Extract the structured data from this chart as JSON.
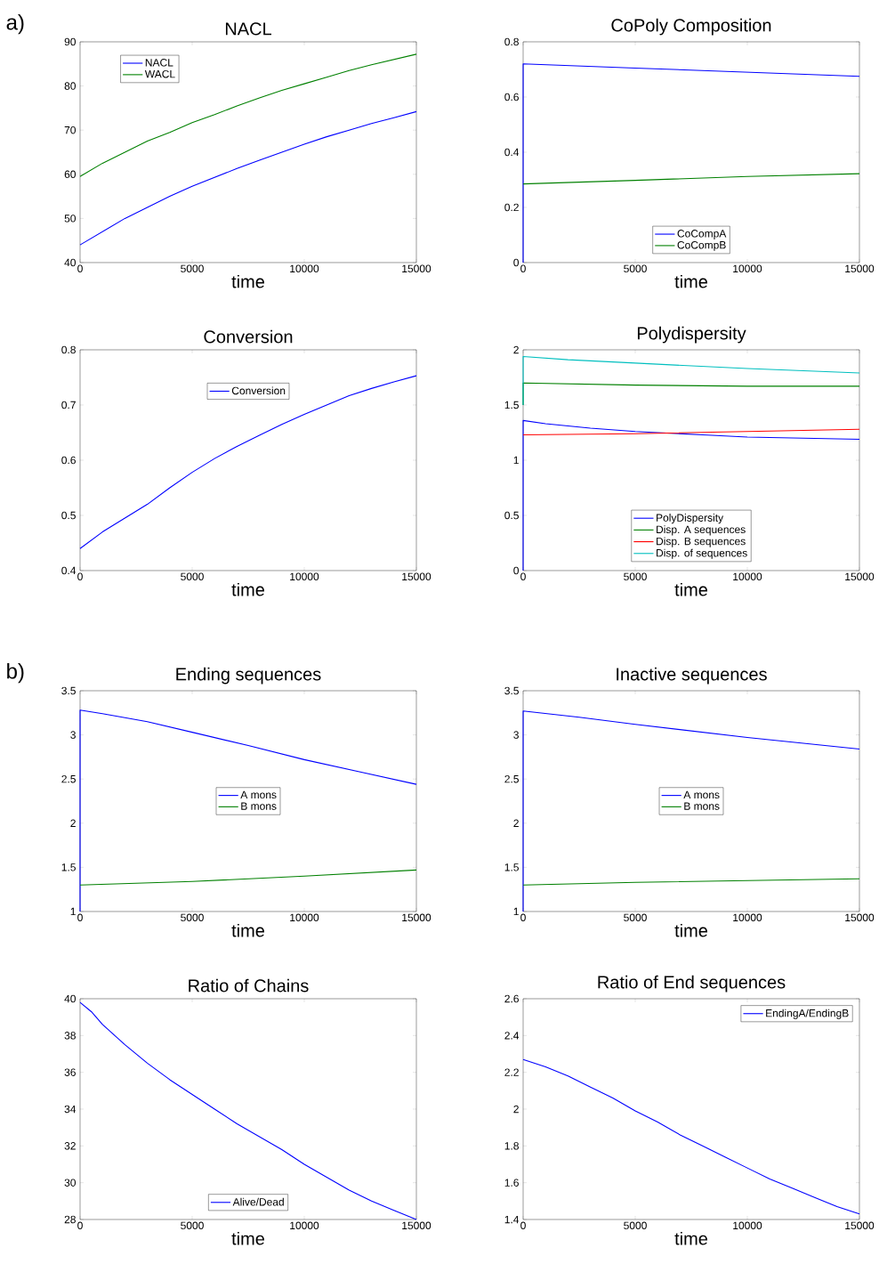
{
  "chart_data": [
    {
      "type": "line",
      "title": "NACL",
      "xlabel": "time",
      "annotations": [
        "a)"
      ],
      "xlim": [
        0,
        15000
      ],
      "xticks": [
        0,
        5000,
        10000,
        15000
      ],
      "ylim": [
        40,
        90
      ],
      "yticks": [
        40,
        50,
        60,
        70,
        80,
        90
      ],
      "legend": "top left",
      "series": [
        {
          "name": "NACL",
          "color": "#0000ff",
          "x": [
            0,
            1000,
            2000,
            3000,
            4000,
            5000,
            6000,
            7000,
            8000,
            9000,
            10000,
            11000,
            12000,
            13000,
            14000,
            15000
          ],
          "values": [
            44,
            47,
            50,
            52.5,
            55,
            57.3,
            59.3,
            61.3,
            63.2,
            65,
            66.8,
            68.5,
            70,
            71.5,
            72.8,
            74.2
          ]
        },
        {
          "name": "WACL",
          "color": "#008000",
          "x": [
            0,
            1000,
            2000,
            3000,
            4000,
            5000,
            6000,
            7000,
            8000,
            9000,
            10000,
            11000,
            12000,
            13000,
            14000,
            15000
          ],
          "values": [
            59.5,
            62.5,
            65,
            67.5,
            69.5,
            71.7,
            73.5,
            75.5,
            77.3,
            79,
            80.5,
            82,
            83.5,
            84.8,
            86,
            87.2
          ]
        }
      ]
    },
    {
      "type": "line",
      "title": "CoPoly Composition",
      "xlabel": "time",
      "xlim": [
        0,
        15000
      ],
      "xticks": [
        0,
        5000,
        10000,
        15000
      ],
      "ylim": [
        0,
        0.8
      ],
      "yticks": [
        0,
        0.2,
        0.4,
        0.6,
        0.8
      ],
      "legend": "bottom",
      "series": [
        {
          "name": "CoCompA",
          "color": "#0000ff",
          "x": [
            0,
            1,
            5000,
            10000,
            15000
          ],
          "values": [
            0,
            0.72,
            0.705,
            0.69,
            0.675
          ]
        },
        {
          "name": "CoCompB",
          "color": "#008000",
          "x": [
            1,
            5000,
            10000,
            15000
          ],
          "values": [
            0.285,
            0.298,
            0.312,
            0.322
          ]
        }
      ]
    },
    {
      "type": "line",
      "title": "Conversion",
      "xlabel": "time",
      "xlim": [
        0,
        15000
      ],
      "xticks": [
        0,
        5000,
        10000,
        15000
      ],
      "ylim": [
        0.4,
        0.8
      ],
      "yticks": [
        0.4,
        0.5,
        0.6,
        0.7,
        0.8
      ],
      "legend": "top",
      "series": [
        {
          "name": "Conversion",
          "color": "#0000ff",
          "x": [
            0,
            1000,
            2000,
            3000,
            4000,
            5000,
            6000,
            7000,
            8000,
            9000,
            10000,
            11000,
            12000,
            13000,
            14000,
            15000
          ],
          "values": [
            0.44,
            0.47,
            0.495,
            0.52,
            0.55,
            0.578,
            0.603,
            0.625,
            0.645,
            0.665,
            0.683,
            0.7,
            0.717,
            0.73,
            0.742,
            0.753
          ]
        }
      ]
    },
    {
      "type": "line",
      "title": "Polydispersity",
      "xlabel": "time",
      "xlim": [
        0,
        15000
      ],
      "xticks": [
        0,
        5000,
        10000,
        15000
      ],
      "ylim": [
        0,
        2
      ],
      "yticks": [
        0,
        0.5,
        1,
        1.5,
        2
      ],
      "legend": "bottom",
      "series": [
        {
          "name": "PolyDispersity",
          "color": "#0000ff",
          "x": [
            0,
            1,
            1000,
            3000,
            5000,
            8000,
            10000,
            15000
          ],
          "values": [
            0,
            1.36,
            1.33,
            1.29,
            1.26,
            1.23,
            1.21,
            1.19
          ]
        },
        {
          "name": "Disp. A sequences",
          "color": "#008000",
          "x": [
            0,
            1,
            5000,
            10000,
            15000
          ],
          "values": [
            1.5,
            1.7,
            1.68,
            1.67,
            1.67
          ]
        },
        {
          "name": "Disp. B sequences",
          "color": "#ff0000",
          "x": [
            1,
            5000,
            10000,
            15000
          ],
          "values": [
            1.23,
            1.24,
            1.26,
            1.28
          ]
        },
        {
          "name": "Disp. of sequences",
          "color": "#00bfbf",
          "x": [
            0,
            1,
            2000,
            5000,
            10000,
            15000
          ],
          "values": [
            1.5,
            1.94,
            1.91,
            1.88,
            1.83,
            1.79
          ]
        }
      ]
    },
    {
      "type": "line",
      "title": "Ending sequences",
      "xlabel": "time",
      "annotations": [
        "b)"
      ],
      "xlim": [
        0,
        15000
      ],
      "xticks": [
        0,
        5000,
        10000,
        15000
      ],
      "ylim": [
        1,
        3.5
      ],
      "yticks": [
        1,
        1.5,
        2,
        2.5,
        3,
        3.5
      ],
      "legend": "center",
      "series": [
        {
          "name": "A mons",
          "color": "#0000ff",
          "x": [
            0,
            1,
            1000,
            3000,
            5000,
            7500,
            10000,
            12500,
            15000
          ],
          "values": [
            1,
            3.28,
            3.24,
            3.15,
            3.03,
            2.88,
            2.72,
            2.58,
            2.44
          ]
        },
        {
          "name": "B mons",
          "color": "#008000",
          "x": [
            1,
            5000,
            10000,
            15000
          ],
          "values": [
            1.3,
            1.34,
            1.4,
            1.47
          ]
        }
      ]
    },
    {
      "type": "line",
      "title": "Inactive sequences",
      "xlabel": "time",
      "xlim": [
        0,
        15000
      ],
      "xticks": [
        0,
        5000,
        10000,
        15000
      ],
      "ylim": [
        1,
        3.5
      ],
      "yticks": [
        1,
        1.5,
        2,
        2.5,
        3,
        3.5
      ],
      "legend": "center",
      "series": [
        {
          "name": "A mons",
          "color": "#0000ff",
          "x": [
            0,
            1,
            2500,
            5000,
            10000,
            15000
          ],
          "values": [
            1,
            3.27,
            3.2,
            3.12,
            2.97,
            2.84
          ]
        },
        {
          "name": "B mons",
          "color": "#008000",
          "x": [
            1,
            5000,
            10000,
            15000
          ],
          "values": [
            1.3,
            1.33,
            1.35,
            1.37
          ]
        }
      ]
    },
    {
      "type": "line",
      "title": "Ratio of Chains",
      "xlabel": "time",
      "xlim": [
        0,
        15000
      ],
      "xticks": [
        0,
        5000,
        10000,
        15000
      ],
      "ylim": [
        28,
        40
      ],
      "yticks": [
        28,
        30,
        32,
        34,
        36,
        38,
        40
      ],
      "legend": "bottom",
      "series": [
        {
          "name": "Alive/Dead",
          "color": "#0000ff",
          "x": [
            0,
            500,
            1000,
            2000,
            3000,
            4000,
            5000,
            6000,
            7000,
            8000,
            9000,
            10000,
            11000,
            12000,
            13000,
            14000,
            15000
          ],
          "values": [
            39.8,
            39.3,
            38.6,
            37.5,
            36.5,
            35.6,
            34.8,
            34.0,
            33.2,
            32.5,
            31.8,
            31.0,
            30.3,
            29.6,
            29.0,
            28.5,
            28.0
          ]
        }
      ]
    },
    {
      "type": "line",
      "title": "Ratio of End sequences",
      "xlabel": "time",
      "xlim": [
        0,
        15000
      ],
      "xticks": [
        0,
        5000,
        10000,
        15000
      ],
      "ylim": [
        1.4,
        2.6
      ],
      "yticks": [
        1.4,
        1.6,
        1.8,
        2,
        2.2,
        2.4,
        2.6
      ],
      "legend": "top right",
      "series": [
        {
          "name": "EndingA/EndingB",
          "color": "#0000ff",
          "x": [
            0,
            1000,
            2000,
            3000,
            4000,
            5000,
            6000,
            7000,
            8000,
            9000,
            10000,
            11000,
            12000,
            13000,
            14000,
            15000
          ],
          "values": [
            2.27,
            2.23,
            2.18,
            2.12,
            2.06,
            1.99,
            1.93,
            1.86,
            1.8,
            1.74,
            1.68,
            1.62,
            1.57,
            1.52,
            1.47,
            1.43
          ]
        }
      ]
    }
  ]
}
